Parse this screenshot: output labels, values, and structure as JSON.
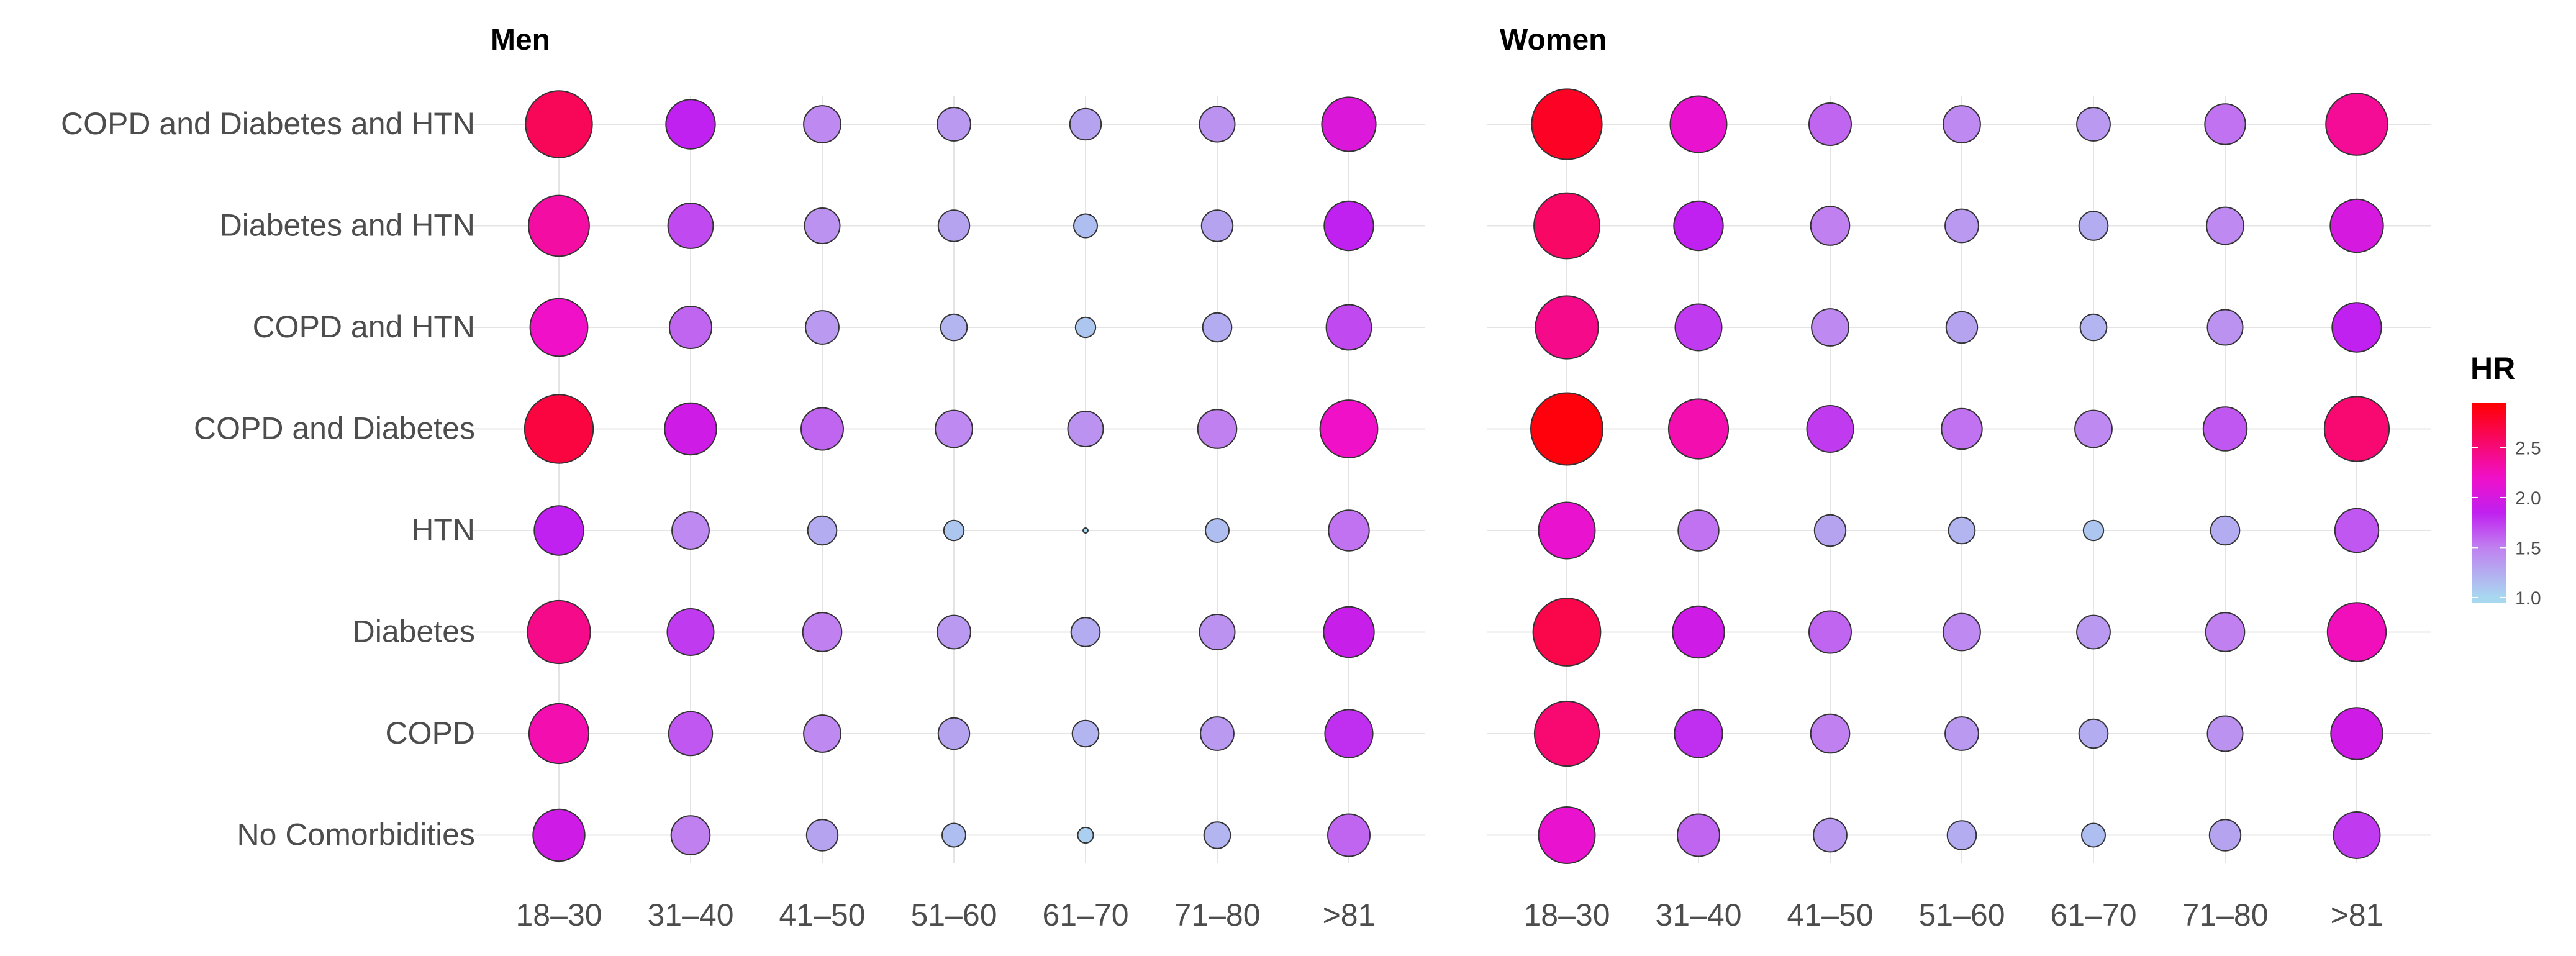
{
  "chart_data": {
    "type": "bubble",
    "panels": [
      {
        "title": "Men",
        "categories_x": [
          "18–30",
          "31–40",
          "41–50",
          "51–60",
          "61–70",
          "71–80",
          ">81"
        ],
        "categories_y": [
          "COPD and Diabetes and HTN",
          "Diabetes and HTN",
          "COPD and HTN",
          "COPD and Diabetes",
          "HTN",
          "Diabetes",
          "COPD",
          "No Comorbidities"
        ],
        "hr": [
          [
            2.65,
            1.85,
            1.45,
            1.35,
            1.3,
            1.4,
            2.05
          ],
          [
            2.35,
            1.7,
            1.4,
            1.3,
            1.15,
            1.3,
            1.85
          ],
          [
            2.2,
            1.6,
            1.35,
            1.2,
            1.1,
            1.25,
            1.7
          ],
          [
            2.75,
            1.95,
            1.6,
            1.45,
            1.4,
            1.5,
            2.2
          ],
          [
            1.85,
            1.45,
            1.25,
            1.1,
            1.0,
            1.15,
            1.55
          ],
          [
            2.45,
            1.75,
            1.5,
            1.35,
            1.25,
            1.4,
            1.9
          ],
          [
            2.3,
            1.65,
            1.45,
            1.3,
            1.2,
            1.35,
            1.8
          ],
          [
            1.95,
            1.5,
            1.3,
            1.15,
            1.05,
            1.2,
            1.6
          ]
        ]
      },
      {
        "title": "Women",
        "categories_x": [
          "18–30",
          "31–40",
          "41–50",
          "51–60",
          "61–70",
          "71–80",
          ">81"
        ],
        "categories_y": [
          "COPD and Diabetes and HTN",
          "Diabetes and HTN",
          "COPD and HTN",
          "COPD and Diabetes",
          "HTN",
          "Diabetes",
          "COPD",
          "No Comorbidities"
        ],
        "hr": [
          [
            2.85,
            2.15,
            1.6,
            1.45,
            1.35,
            1.55,
            2.4
          ],
          [
            2.6,
            1.85,
            1.5,
            1.35,
            1.25,
            1.45,
            2.0
          ],
          [
            2.45,
            1.75,
            1.45,
            1.3,
            1.2,
            1.4,
            1.85
          ],
          [
            2.95,
            2.3,
            1.75,
            1.55,
            1.45,
            1.65,
            2.55
          ],
          [
            2.15,
            1.55,
            1.3,
            1.2,
            1.1,
            1.25,
            1.65
          ],
          [
            2.7,
            1.95,
            1.6,
            1.45,
            1.35,
            1.5,
            2.25
          ],
          [
            2.55,
            1.8,
            1.5,
            1.35,
            1.25,
            1.4,
            1.95
          ],
          [
            2.15,
            1.6,
            1.35,
            1.25,
            1.15,
            1.3,
            1.75
          ]
        ]
      }
    ],
    "legend": {
      "title": "HR",
      "ticks": [
        "2.5",
        "2.0",
        "1.5",
        "1.0"
      ],
      "tick_values": [
        2.5,
        2.0,
        1.5,
        1.0
      ],
      "range": [
        0.95,
        2.95
      ],
      "placement": "right"
    },
    "color_scale": [
      "#a8d8f0",
      "#c080f0",
      "#c020f0",
      "#f010c8",
      "#ff0000"
    ],
    "color_stops": [
      1.0,
      1.5,
      1.85,
      2.2,
      3.0
    ]
  }
}
